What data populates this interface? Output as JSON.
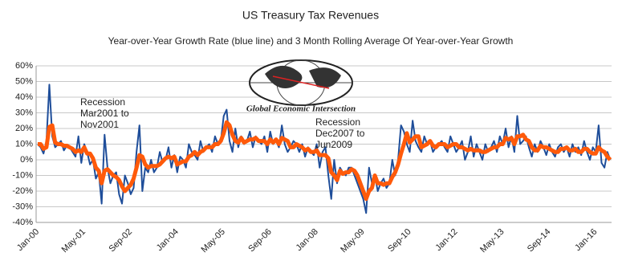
{
  "chart_data": {
    "type": "line",
    "title": "US Treasury Tax Revenues",
    "subtitle": "Year-over-Year Growth Rate (blue line) and 3 Month Rolling Average Of Year-over-Year Growth",
    "logo_text": "Global Economic Intersection",
    "annotations": [
      {
        "lines": [
          "Recession",
          "Mar2001 to",
          "Nov2001"
        ]
      },
      {
        "lines": [
          "Recession",
          "Dec2007 to",
          "Jun2009"
        ]
      }
    ],
    "categories": [
      "Jan-00",
      null,
      null,
      null,
      null,
      null,
      null,
      null,
      null,
      null,
      null,
      null,
      null,
      null,
      null,
      null,
      "May-01",
      null,
      null,
      null,
      null,
      null,
      null,
      null,
      null,
      null,
      null,
      null,
      null,
      null,
      null,
      null,
      "Sep-02",
      null,
      null,
      null,
      null,
      null,
      null,
      null,
      null,
      null,
      null,
      null,
      null,
      null,
      null,
      null,
      "Jan-04",
      null,
      null,
      null,
      null,
      null,
      null,
      null,
      null,
      null,
      null,
      null,
      null,
      null,
      null,
      null,
      "May-05",
      null,
      null,
      null,
      null,
      null,
      null,
      null,
      null,
      null,
      null,
      null,
      null,
      null,
      null,
      null,
      "Sep-06",
      null,
      null,
      null,
      null,
      null,
      null,
      null,
      null,
      null,
      null,
      null,
      null,
      null,
      null,
      null,
      "Jan-08",
      null,
      null,
      null,
      null,
      null,
      null,
      null,
      null,
      null,
      null,
      null,
      null,
      null,
      null,
      null,
      "May-09",
      null,
      null,
      null,
      null,
      null,
      null,
      null,
      null,
      null,
      null,
      null,
      null,
      null,
      null,
      null,
      "Sep-10",
      null,
      null,
      null,
      null,
      null,
      null,
      null,
      null,
      null,
      null,
      null,
      null,
      null,
      null,
      null,
      "Jan-12",
      null,
      null,
      null,
      null,
      null,
      null,
      null,
      null,
      null,
      null,
      null,
      null,
      null,
      null,
      null,
      "May-13",
      null,
      null,
      null,
      null,
      null,
      null,
      null,
      null,
      null,
      null,
      null,
      null,
      null,
      null,
      null,
      "Sep-14",
      null,
      null,
      null,
      null,
      null,
      null,
      null,
      null,
      null,
      null,
      null,
      null,
      null,
      null,
      null,
      "Jan-16",
      null,
      null,
      null,
      null,
      null
    ],
    "series": [
      {
        "color": "#1f4e9a",
        "width": 2,
        "values": [
          10,
          8,
          4,
          12,
          48,
          15,
          8,
          10,
          12,
          6,
          9,
          8,
          5,
          2,
          15,
          -2,
          10,
          5,
          -3,
          0,
          -12,
          -8,
          -28,
          16,
          -5,
          -15,
          -10,
          -8,
          -22,
          -28,
          -10,
          -15,
          -22,
          -18,
          5,
          22,
          -20,
          -5,
          -8,
          0,
          -8,
          -5,
          5,
          -2,
          0,
          8,
          -5,
          3,
          -8,
          2,
          0,
          -5,
          10,
          5,
          3,
          0,
          12,
          5,
          8,
          10,
          5,
          15,
          10,
          12,
          28,
          32,
          12,
          5,
          20,
          8,
          15,
          10,
          12,
          18,
          8,
          15,
          12,
          10,
          15,
          5,
          18,
          10,
          12,
          8,
          22,
          10,
          5,
          8,
          12,
          10,
          5,
          10,
          2,
          8,
          5,
          3,
          10,
          -5,
          5,
          8,
          -10,
          -25,
          0,
          -15,
          -5,
          -8,
          -10,
          -5,
          -5,
          -10,
          -15,
          -20,
          -25,
          -34,
          -5,
          -15,
          -10,
          -20,
          -15,
          -12,
          -18,
          -15,
          0,
          -10,
          0,
          22,
          18,
          10,
          5,
          25,
          12,
          8,
          5,
          15,
          10,
          12,
          5,
          8,
          10,
          12,
          8,
          5,
          15,
          10,
          5,
          8,
          12,
          0,
          5,
          15,
          2,
          10,
          5,
          0,
          10,
          5,
          8,
          12,
          5,
          15,
          10,
          20,
          8,
          15,
          5,
          28,
          10,
          12,
          15,
          8,
          2,
          10,
          5,
          12,
          8,
          3,
          10,
          5,
          2,
          8,
          10,
          5,
          8,
          2,
          10,
          5,
          8,
          3,
          12,
          5,
          0,
          8,
          5,
          22,
          -2,
          -5,
          5,
          0
        ]
      },
      {
        "color": "#ff5a0a",
        "width": 5,
        "values": [
          10,
          10,
          7,
          8,
          21,
          22,
          11,
          10,
          10,
          9,
          9,
          8,
          7,
          5,
          6,
          5,
          8,
          4,
          4,
          1,
          -5,
          -7,
          -15,
          -7,
          -6,
          -8,
          -10,
          -11,
          -13,
          -17,
          -20,
          -18,
          -16,
          -12,
          -5,
          3,
          2,
          -3,
          -5,
          -4,
          -4,
          -4,
          -3,
          -1,
          1,
          2,
          1,
          2,
          -3,
          -2,
          -1,
          -1,
          2,
          3,
          5,
          3,
          5,
          6,
          8,
          8,
          8,
          10,
          10,
          12,
          17,
          24,
          22,
          16,
          12,
          11,
          14,
          11,
          12,
          13,
          13,
          14,
          12,
          12,
          12,
          10,
          13,
          11,
          13,
          10,
          14,
          13,
          12,
          8,
          8,
          10,
          9,
          8,
          6,
          7,
          5,
          5,
          6,
          3,
          3,
          3,
          1,
          -8,
          -10,
          -13,
          -7,
          -9,
          -8,
          -8,
          -6,
          -7,
          -10,
          -15,
          -20,
          -25,
          -20,
          -18,
          -10,
          -15,
          -15,
          -16,
          -15,
          -15,
          -11,
          -8,
          -3,
          4,
          10,
          17,
          11,
          13,
          15,
          15,
          8,
          9,
          10,
          12,
          9,
          8,
          10,
          10,
          10,
          8,
          9,
          10,
          10,
          8,
          8,
          7,
          6,
          7,
          6,
          6,
          6,
          5,
          5,
          6,
          7,
          8,
          8,
          10,
          10,
          14,
          13,
          14,
          10,
          15,
          15,
          16,
          13,
          12,
          8,
          6,
          6,
          9,
          8,
          8,
          7,
          6,
          5,
          5,
          7,
          7,
          8,
          6,
          6,
          7,
          5,
          5,
          7,
          7,
          5,
          4,
          4,
          8,
          6,
          5,
          2,
          0
        ]
      }
    ],
    "ylim": [
      -40,
      60
    ],
    "yticks": [
      {
        "value": -40,
        "label": "-40%"
      },
      {
        "value": -30,
        "label": "-30%"
      },
      {
        "value": -20,
        "label": "-20%"
      },
      {
        "value": -10,
        "label": "-10%"
      },
      {
        "value": 0,
        "label": "0%"
      },
      {
        "value": 10,
        "label": "10%"
      },
      {
        "value": 20,
        "label": "20%"
      },
      {
        "value": 30,
        "label": "30%"
      },
      {
        "value": 40,
        "label": "40%"
      },
      {
        "value": 50,
        "label": "50%"
      },
      {
        "value": 60,
        "label": "60%"
      }
    ],
    "grid": true
  }
}
